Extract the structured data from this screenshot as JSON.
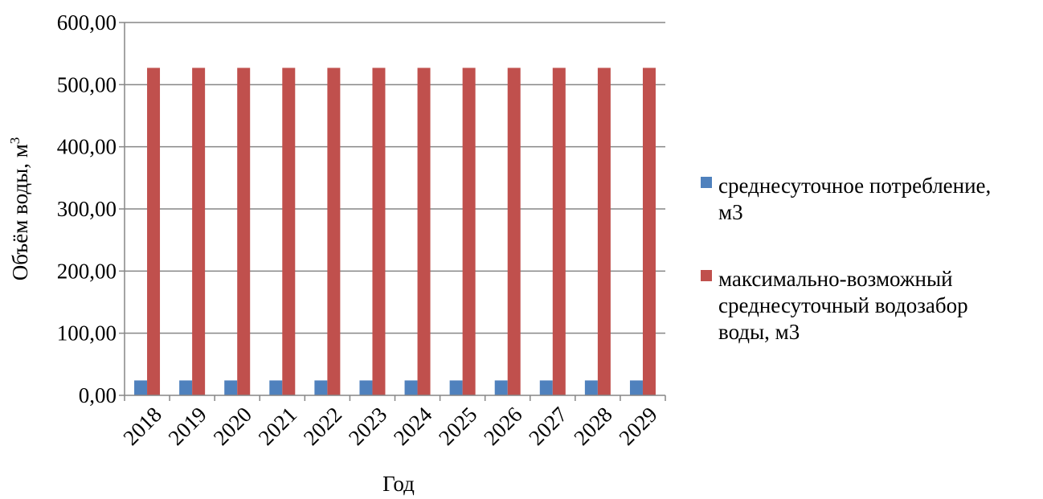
{
  "chart_data": {
    "type": "bar",
    "categories": [
      "2018",
      "2019",
      "2020",
      "2021",
      "2022",
      "2023",
      "2024",
      "2025",
      "2026",
      "2027",
      "2028",
      "2029"
    ],
    "series": [
      {
        "name": "среднесуточное потребление, м3",
        "legend_lines": [
          "среднесуточное потребление,",
          "м3"
        ],
        "color": "#4F81BD",
        "values": [
          24,
          24,
          24,
          24,
          24,
          24,
          24,
          24,
          24,
          24,
          24,
          24
        ]
      },
      {
        "name": "максимально-возможный среднесуточный водозабор воды, м3",
        "legend_lines": [
          "максимально-возможный",
          "среднесуточный водозабор",
          "воды, м3"
        ],
        "color": "#C0504D",
        "values": [
          527,
          527,
          527,
          527,
          527,
          527,
          527,
          527,
          527,
          527,
          527,
          527
        ]
      }
    ],
    "ylim": [
      0,
      600
    ],
    "y_ticks": [
      "0,00",
      "100,00",
      "200,00",
      "300,00",
      "400,00",
      "500,00",
      "600,00"
    ],
    "xlabel": "Год",
    "ylabel_main": "Объём воды,  м",
    "ylabel_sup": "3",
    "grid": true,
    "legend_position": "right"
  }
}
